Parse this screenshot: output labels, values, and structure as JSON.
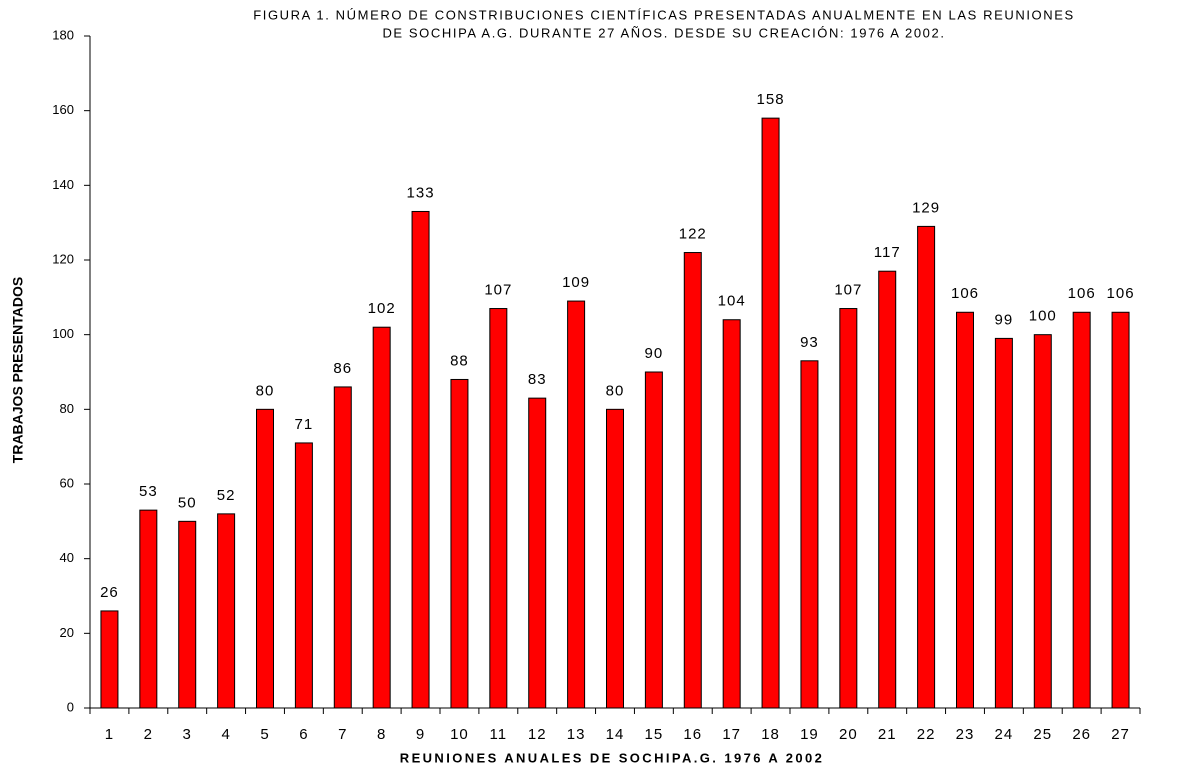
{
  "chart_data": {
    "type": "bar",
    "title": [
      "FIGURA 1. NÚMERO DE CONSTRIBUCIONES CIENTÍFICAS PRESENTADAS ANUALMENTE EN  LAS REUNIONES",
      "DE SOCHIPA A.G. DURANTE 27 AÑOS.  DESDE SU CREACIÓN: 1976 A 2002."
    ],
    "x_label": "REUNIONES ANUALES DE SOCHIPA.G. 1976 A 2002",
    "y_label": "TRABAJOS PRESENTADOS",
    "categories": [
      "1",
      "2",
      "3",
      "4",
      "5",
      "6",
      "7",
      "8",
      "9",
      "10",
      "11",
      "12",
      "13",
      "14",
      "15",
      "16",
      "17",
      "18",
      "19",
      "20",
      "21",
      "22",
      "23",
      "24",
      "25",
      "26",
      "27"
    ],
    "values": [
      26,
      53,
      50,
      52,
      80,
      71,
      86,
      102,
      133,
      88,
      107,
      83,
      109,
      80,
      90,
      122,
      104,
      158,
      93,
      107,
      117,
      129,
      106,
      99,
      100,
      106,
      106
    ],
    "color": "#ff0000",
    "ylim": [
      0,
      180
    ],
    "yticks": [
      0,
      20,
      40,
      60,
      80,
      100,
      120,
      140,
      160,
      180
    ],
    "grid": false
  }
}
